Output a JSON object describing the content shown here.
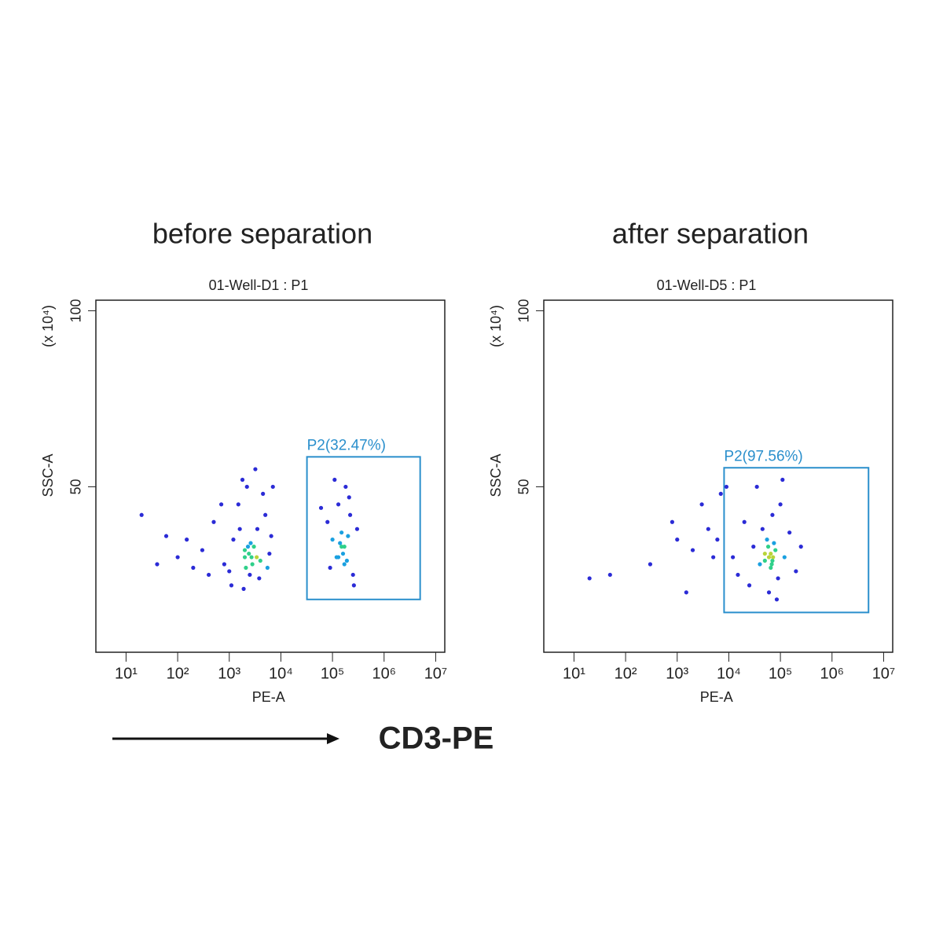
{
  "chart_data": [
    {
      "type": "scatter",
      "heading": "before separation",
      "title": "01-Well-D1 : P1",
      "x_label": "PE-A",
      "y_label": "SSC-A",
      "y_unit": "(x 10⁴)",
      "log_x": true,
      "point_color": "#2b2bd6",
      "xlim": [
        2.6,
        15000000
      ],
      "ylim": [
        3,
        103
      ],
      "xticks": [
        {
          "value": 10,
          "label": "10¹"
        },
        {
          "value": 100,
          "label": "10²"
        },
        {
          "value": 1000,
          "label": "10³"
        },
        {
          "value": 10000,
          "label": "10⁴"
        },
        {
          "value": 100000,
          "label": "10⁵"
        },
        {
          "value": 1000000,
          "label": "10⁶"
        },
        {
          "value": 10000000,
          "label": "10⁷"
        }
      ],
      "yticks": [
        50,
        100
      ],
      "gate": {
        "name": "P2(32.47%)",
        "color": "#2a8fcc",
        "xlim": [
          32000,
          5000000
        ],
        "ylim": [
          18,
          58.5
        ]
      },
      "x": [
        300,
        500,
        800,
        1200,
        1500,
        2000,
        2500,
        3000,
        3500,
        4000,
        5000,
        6000,
        2200,
        1800,
        3200,
        4500,
        1000,
        700,
        2800,
        2600,
        2400,
        1600,
        3800,
        6500,
        150,
        100,
        60,
        20,
        40,
        200,
        400,
        1100,
        1900,
        7000,
        5500,
        2100,
        2300,
        2700,
        2000,
        3400,
        80000,
        100000,
        120000,
        150000,
        170000,
        200000,
        250000,
        130000,
        180000,
        110000,
        220000,
        160000,
        140000,
        190000,
        300000,
        90000,
        260000,
        150000,
        170000,
        130000,
        60000,
        210000
      ],
      "values": [
        32,
        40,
        28,
        35,
        45,
        30,
        25,
        33,
        38,
        29,
        42,
        31,
        50,
        52,
        55,
        48,
        26,
        45,
        28,
        34,
        31,
        38,
        24,
        36,
        35,
        30,
        36,
        42,
        28,
        27,
        25,
        22,
        21,
        50,
        27,
        27,
        33,
        30,
        32,
        30,
        40,
        35,
        30,
        33,
        28,
        36,
        25,
        45,
        50,
        52,
        42,
        31,
        34,
        29,
        38,
        27,
        22,
        37,
        33,
        30,
        44,
        47
      ]
    },
    {
      "type": "scatter",
      "heading": "after separation",
      "title": "01-Well-D5 : P1",
      "x_label": "PE-A",
      "y_label": "SSC-A",
      "y_unit": "(x 10⁴)",
      "log_x": true,
      "point_color": "#2b2bd6",
      "xlim": [
        2.6,
        15000000
      ],
      "ylim": [
        3,
        103
      ],
      "xticks": [
        {
          "value": 10,
          "label": "10¹"
        },
        {
          "value": 100,
          "label": "10²"
        },
        {
          "value": 1000,
          "label": "10³"
        },
        {
          "value": 10000,
          "label": "10⁴"
        },
        {
          "value": 100000,
          "label": "10⁵"
        },
        {
          "value": 1000000,
          "label": "10⁶"
        },
        {
          "value": 10000000,
          "label": "10⁷"
        }
      ],
      "yticks": [
        50,
        100
      ],
      "gate": {
        "name": "P2(97.56%)",
        "color": "#2a8fcc",
        "xlim": [
          8100,
          5100000
        ],
        "ylim": [
          14.3,
          55.4
        ]
      },
      "x": [
        2000,
        800,
        300,
        50,
        20,
        3000,
        5000,
        4000,
        1500,
        6000,
        7000,
        1000,
        9000,
        12000,
        15000,
        20000,
        30000,
        40000,
        50000,
        60000,
        70000,
        80000,
        55000,
        65000,
        75000,
        45000,
        90000,
        100000,
        120000,
        150000,
        200000,
        250000,
        35000,
        60000,
        85000,
        25000,
        70000,
        110000,
        50000,
        65000,
        72000,
        58000,
        68000
      ],
      "values": [
        32,
        40,
        28,
        25,
        24,
        45,
        30,
        38,
        20,
        35,
        48,
        35,
        50,
        30,
        25,
        40,
        33,
        28,
        31,
        30,
        29,
        32,
        35,
        27,
        34,
        38,
        24,
        45,
        30,
        37,
        26,
        33,
        50,
        20,
        18,
        22,
        42,
        52,
        29,
        31,
        30,
        33,
        28
      ]
    }
  ],
  "figure": {
    "axis_annotation": "CD3-PE"
  }
}
